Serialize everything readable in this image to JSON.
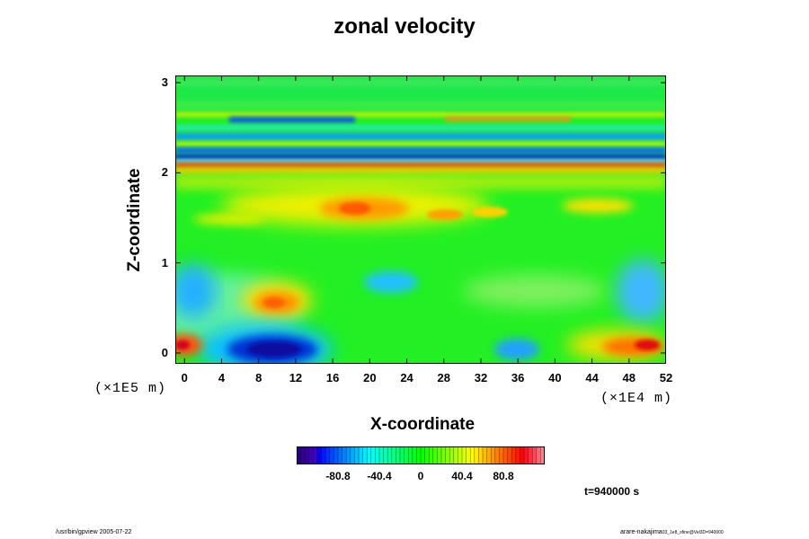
{
  "chart_data": {
    "type": "heatmap",
    "title": "zonal velocity",
    "xlabel": "X-coordinate",
    "ylabel": "Z-coordinate",
    "x_ticks": [
      0,
      4,
      8,
      12,
      16,
      20,
      24,
      28,
      32,
      36,
      40,
      44,
      48,
      52
    ],
    "y_ticks": [
      0,
      1,
      2,
      3
    ],
    "xlim": [
      -1,
      52
    ],
    "ylim": [
      -0.12,
      3.08
    ],
    "x_unit": "(×1E4 m)",
    "y_unit": "(×1E5 m)",
    "colorbar": {
      "ticks": [
        "-80.8",
        "-40.4",
        "0",
        "40.4",
        "80.8"
      ],
      "range": [
        -121.2,
        121.2
      ],
      "colormap": "rainbow"
    },
    "time_label": "t=940000 s",
    "features": [
      {
        "x": 11,
        "z": 0.1,
        "value": -95
      },
      {
        "x": 19,
        "z": 1.6,
        "value": 55
      },
      {
        "x": 12,
        "z": 0.58,
        "value": 60
      },
      {
        "x": 51,
        "z": 0.08,
        "value": 95
      },
      {
        "x": 0,
        "z": 0.1,
        "value": 95
      },
      {
        "x": 36,
        "z": 0.05,
        "value": -60
      },
      {
        "x": 13,
        "z": 2.59,
        "value": -70
      },
      {
        "x": 25,
        "z": 2.22,
        "value": -85
      },
      {
        "x": 20,
        "z": 2.07,
        "value": 85
      }
    ]
  },
  "footer": {
    "left": "/usr/bin/gpview 2005-07-22",
    "right": "arare-nakajima",
    "right_sub": "03_1e8_sfine@Vel3D=940000"
  }
}
